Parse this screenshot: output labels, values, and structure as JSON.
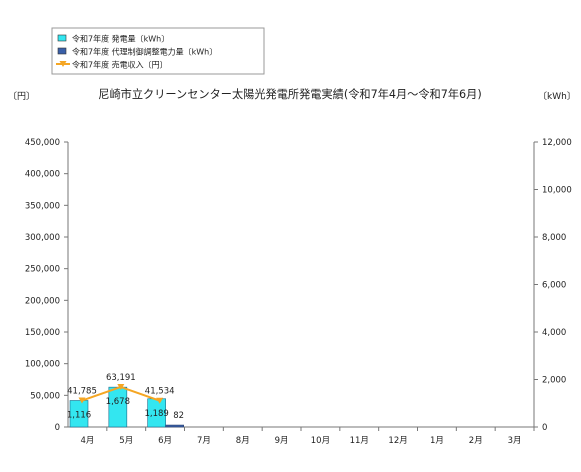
{
  "chart_data": {
    "type": "bar",
    "title": "尼崎市立クリーンセンター太陽光発電所発電実績(令和7年4月～令和7年6月)",
    "left_unit": "〔円〕",
    "right_unit": "〔kWh〕",
    "categories": [
      "4月",
      "5月",
      "6月",
      "7月",
      "8月",
      "9月",
      "10月",
      "11月",
      "12月",
      "1月",
      "2月",
      "3月"
    ],
    "left_axis": {
      "ylim": [
        0,
        450000
      ],
      "ticks": [
        "0",
        "50,000",
        "100,000",
        "150,000",
        "200,000",
        "250,000",
        "300,000",
        "350,000",
        "400,000",
        "450,000"
      ]
    },
    "right_axis": {
      "ylim": [
        0,
        12000
      ],
      "ticks": [
        "0",
        "2,000",
        "4,000",
        "6,000",
        "8,000",
        "10,000",
        "12,000"
      ]
    },
    "series": [
      {
        "name": "令和7年度 発電量〔kWh〕",
        "kind": "bar",
        "axis": "right",
        "color": "#33e6f0",
        "values": [
          1116,
          1678,
          1189,
          null,
          null,
          null,
          null,
          null,
          null,
          null,
          null,
          null
        ],
        "labels": [
          "1,116",
          "1,678",
          "1,189",
          "",
          "",
          "",
          "",
          "",
          "",
          "",
          "",
          ""
        ]
      },
      {
        "name": "令和7年度 代理制御調整電力量〔kWh〕",
        "kind": "bar",
        "axis": "right",
        "color": "#3a5fa8",
        "values": [
          null,
          null,
          82,
          null,
          null,
          null,
          null,
          null,
          null,
          null,
          null,
          null
        ],
        "labels": [
          "",
          "",
          "82",
          "",
          "",
          "",
          "",
          "",
          "",
          "",
          "",
          ""
        ]
      },
      {
        "name": "令和7年度 売電収入〔円〕",
        "kind": "line",
        "axis": "left",
        "color": "#f5a623",
        "values": [
          41785,
          63191,
          41534,
          null,
          null,
          null,
          null,
          null,
          null,
          null,
          null,
          null
        ],
        "labels": [
          "41,785",
          "63,191",
          "41,534",
          "",
          "",
          "",
          "",
          "",
          "",
          "",
          "",
          ""
        ]
      }
    ],
    "legend_position": "top-left",
    "grid": false
  }
}
